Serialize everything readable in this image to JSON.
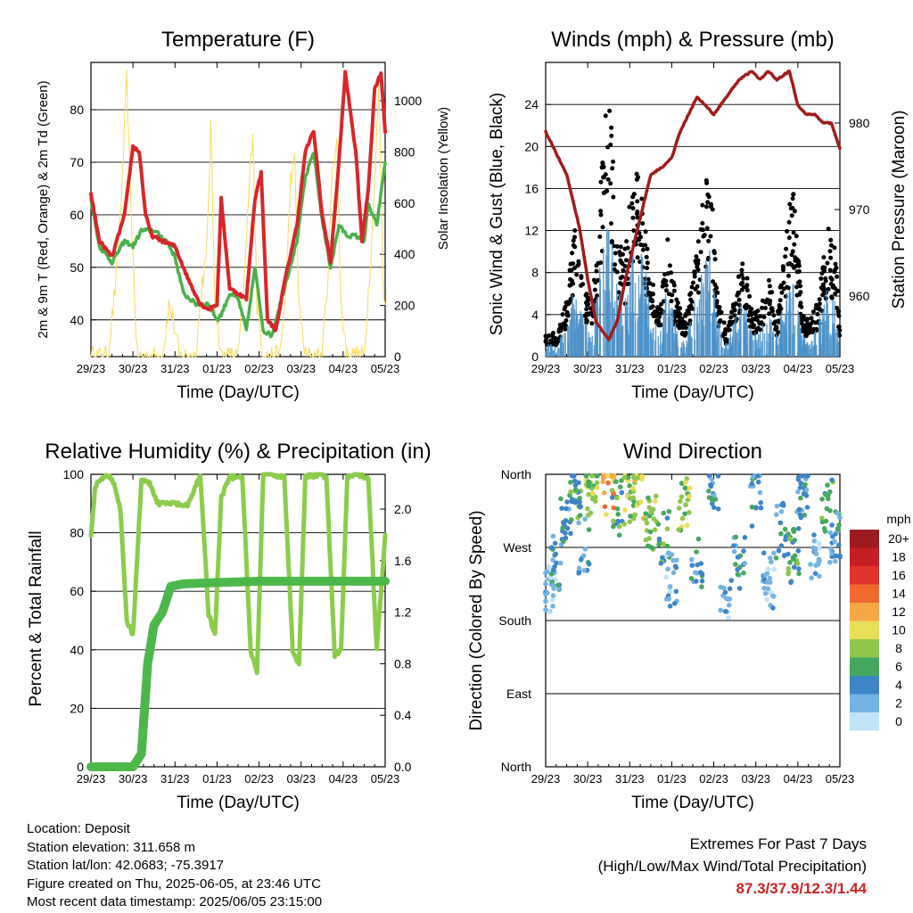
{
  "x_ticks": [
    "29/23",
    "30/23",
    "31/23",
    "01/23",
    "02/23",
    "03/23",
    "04/23",
    "05/23"
  ],
  "x_label": "Time (Day/UTC)",
  "colors": {
    "temp": "#d7262b",
    "dew": "#4cb04a",
    "solar": "#f7df6a",
    "gust": "#000000",
    "wind": "#4a90c8",
    "pressure": "#a01c1c",
    "rh": "#8ccc4c",
    "rain": "#4cb84c"
  },
  "chart_data": [
    {
      "type": "line",
      "title": "Temperature (F)",
      "ylabel": "2m & 9m T (Red, Orange) & 2m Td (Green)",
      "y2label": "Solar Insolation (Yellow)",
      "ylim": [
        33,
        89
      ],
      "y2lim": [
        0,
        1150
      ],
      "yticks": [
        40,
        50,
        60,
        70,
        80
      ],
      "y2ticks": [
        0,
        200,
        400,
        600,
        800,
        1000
      ],
      "series": [
        {
          "key": "temp",
          "x": [
            0,
            0.2,
            0.5,
            0.8,
            1.0,
            1.15,
            1.3,
            1.45,
            1.7,
            2.0,
            2.3,
            2.6,
            2.8,
            3.0,
            3.1,
            3.3,
            3.5,
            3.7,
            3.9,
            4.05,
            4.2,
            4.4,
            4.6,
            4.9,
            5.1,
            5.3,
            5.5,
            5.7,
            5.9,
            6.05,
            6.3,
            6.45,
            6.6,
            6.75,
            6.9,
            7.0
          ],
          "y": [
            64,
            55,
            52,
            60,
            73,
            72,
            60,
            56,
            55,
            54,
            48,
            43,
            42,
            43,
            63,
            46,
            45,
            44,
            63,
            68,
            40,
            38,
            47,
            58,
            72,
            76,
            60,
            51,
            70,
            87,
            72,
            55,
            65,
            84,
            87,
            76
          ]
        },
        {
          "key": "dew",
          "x": [
            0,
            0.2,
            0.5,
            0.8,
            1.0,
            1.2,
            1.5,
            1.8,
            2.0,
            2.2,
            2.5,
            2.8,
            3.0,
            3.1,
            3.3,
            3.5,
            3.7,
            3.9,
            4.1,
            4.3,
            4.6,
            4.9,
            5.1,
            5.3,
            5.5,
            5.7,
            5.9,
            6.1,
            6.3,
            6.5,
            6.6,
            6.8,
            7.0
          ],
          "y": [
            63,
            54,
            51,
            55,
            54,
            57,
            57,
            55,
            52,
            45,
            43,
            43,
            40,
            41,
            45,
            44,
            38,
            50,
            38,
            37,
            46,
            55,
            67,
            72,
            59,
            50,
            58,
            56,
            56,
            55,
            62,
            58,
            70
          ]
        },
        {
          "key": "solar",
          "x": [
            0,
            0.4,
            0.6,
            0.75,
            0.85,
            0.95,
            1.1,
            1.3,
            1.5,
            1.7,
            1.85,
            1.95,
            2.1,
            2.3,
            2.5,
            2.65,
            2.75,
            2.85,
            2.95,
            3.1,
            3.3,
            3.5,
            3.65,
            3.75,
            3.85,
            3.95,
            4.1,
            4.3,
            4.5,
            4.65,
            4.75,
            4.85,
            4.95,
            5.1,
            5.3,
            5.5,
            5.65,
            5.75,
            5.85,
            5.95,
            6.1,
            6.3,
            6.5,
            6.65,
            6.75,
            6.85,
            6.95,
            7.0
          ],
          "y": [
            0,
            0,
            300,
            700,
            1080,
            600,
            0,
            0,
            0,
            0,
            200,
            150,
            0,
            0,
            0,
            300,
            380,
            900,
            220,
            0,
            0,
            0,
            300,
            620,
            900,
            200,
            0,
            0,
            0,
            300,
            700,
            760,
            200,
            0,
            0,
            0,
            350,
            750,
            850,
            200,
            0,
            0,
            0,
            380,
            700,
            1050,
            300,
            200
          ]
        }
      ]
    },
    {
      "type": "scatter",
      "title": "Winds (mph) & Pressure (mb)",
      "ylabel": "Sonic Wind & Gust (Blue, Black)",
      "y2label": "Station Pressure (Maroon)",
      "ylim": [
        0,
        28
      ],
      "y2lim": [
        953,
        987
      ],
      "yticks": [
        0,
        4,
        8,
        12,
        16,
        20,
        24
      ],
      "y2ticks": [
        960,
        970,
        980
      ],
      "series": [
        {
          "key": "wind",
          "x": [
            0,
            0.3,
            0.5,
            0.7,
            0.9,
            1.1,
            1.3,
            1.5,
            1.7,
            1.9,
            2.1,
            2.3,
            2.5,
            2.7,
            2.9,
            3.1,
            3.3,
            3.5,
            3.7,
            3.9,
            4.1,
            4.3,
            4.5,
            4.7,
            4.9,
            5.1,
            5.3,
            5.5,
            5.7,
            5.9,
            6.1,
            6.3,
            6.5,
            6.7,
            6.9,
            7.0
          ],
          "y": [
            1,
            1,
            3,
            6,
            3,
            2,
            8,
            12,
            6,
            5,
            10,
            9,
            4,
            2,
            6,
            3,
            1,
            4,
            7,
            9,
            3,
            1,
            3,
            5,
            2,
            2,
            4,
            2,
            5,
            6,
            2,
            1,
            3,
            6,
            5,
            1
          ]
        },
        {
          "key": "gust",
          "x": [
            0,
            0.3,
            0.5,
            0.7,
            0.9,
            1.1,
            1.3,
            1.5,
            1.7,
            1.9,
            2.1,
            2.3,
            2.5,
            2.7,
            2.9,
            3.1,
            3.3,
            3.5,
            3.7,
            3.9,
            4.1,
            4.3,
            4.5,
            4.7,
            4.9,
            5.1,
            5.3,
            5.5,
            5.7,
            5.9,
            6.1,
            6.3,
            6.5,
            6.7,
            6.9,
            7.0
          ],
          "y": [
            2,
            2,
            5,
            11,
            6,
            4,
            14,
            25,
            10,
            9,
            17,
            13,
            7,
            4,
            10,
            5,
            3,
            7,
            12,
            17,
            5,
            2,
            5,
            9,
            4,
            4,
            7,
            3,
            10,
            15,
            4,
            3,
            5,
            11,
            9,
            2
          ]
        },
        {
          "key": "pressure",
          "x": [
            0,
            0.2,
            0.5,
            0.8,
            1.0,
            1.2,
            1.5,
            1.7,
            1.9,
            2.1,
            2.3,
            2.5,
            2.8,
            3.0,
            3.2,
            3.4,
            3.6,
            3.8,
            4.0,
            4.3,
            4.6,
            4.9,
            5.1,
            5.3,
            5.5,
            5.8,
            6.0,
            6.2,
            6.4,
            6.6,
            6.8,
            7.0
          ],
          "y": [
            979,
            977,
            974,
            968,
            962,
            957,
            955,
            957,
            962,
            966,
            970,
            974,
            975,
            976,
            979,
            981,
            983,
            982,
            981,
            983,
            985,
            986,
            985,
            986,
            985,
            986,
            982,
            981,
            981,
            980,
            980,
            977
          ]
        }
      ]
    },
    {
      "type": "line",
      "title": "Relative Humidity (%) & Precipitation (in)",
      "ylabel": "Percent & Total Rainfall",
      "ylim": [
        0,
        100
      ],
      "y2lim": [
        0,
        2.27
      ],
      "yticks": [
        0,
        20,
        40,
        60,
        80,
        100
      ],
      "y2ticks": [
        0.0,
        0.4,
        0.8,
        1.2,
        1.6,
        2.0
      ],
      "series": [
        {
          "key": "rh",
          "x": [
            0,
            0.1,
            0.3,
            0.5,
            0.7,
            0.85,
            1.0,
            1.2,
            1.4,
            1.6,
            1.8,
            2.0,
            2.3,
            2.6,
            2.8,
            2.95,
            3.1,
            3.3,
            3.6,
            3.8,
            3.95,
            4.1,
            4.3,
            4.6,
            4.8,
            4.95,
            5.1,
            5.4,
            5.6,
            5.8,
            5.95,
            6.1,
            6.3,
            6.6,
            6.8,
            7.0
          ],
          "y": [
            79,
            96,
            99,
            99,
            88,
            50,
            45,
            98,
            97,
            90,
            90,
            90,
            89,
            100,
            52,
            45,
            92,
            99,
            99,
            40,
            32,
            100,
            100,
            99,
            40,
            35,
            99,
            100,
            99,
            38,
            40,
            99,
            100,
            99,
            40,
            79
          ]
        },
        {
          "key": "rain",
          "x": [
            0,
            0.5,
            1.0,
            1.2,
            1.35,
            1.5,
            1.7,
            1.9,
            2.2,
            3.0,
            4.0,
            5.0,
            6.0,
            7.0
          ],
          "y": [
            0,
            0,
            0,
            0.1,
            0.8,
            1.1,
            1.2,
            1.4,
            1.42,
            1.43,
            1.44,
            1.44,
            1.44,
            1.44
          ]
        }
      ]
    },
    {
      "type": "scatter",
      "title": "Wind Direction",
      "ylabel": "Direction (Colored By Speed)",
      "ycategories": [
        "North",
        "East",
        "South",
        "West",
        "North"
      ],
      "colorbar": {
        "title": "mph",
        "labels": [
          "20+",
          "18",
          "16",
          "14",
          "12",
          "10",
          "8",
          "6",
          "4",
          "2",
          "0"
        ],
        "colors": [
          "#9b1b1e",
          "#c41f24",
          "#e03329",
          "#f06a30",
          "#f7a746",
          "#e9de58",
          "#8ec64e",
          "#46a860",
          "#3d85c6",
          "#74b3e4",
          "#bfe3f7"
        ]
      },
      "clusters": [
        {
          "x": 0.1,
          "dir_deg": 220,
          "speed": 2
        },
        {
          "x": 0.25,
          "dir_deg": 250,
          "speed": 4
        },
        {
          "x": 0.5,
          "dir_deg": 300,
          "speed": 4
        },
        {
          "x": 0.7,
          "dir_deg": 330,
          "speed": 6
        },
        {
          "x": 0.9,
          "dir_deg": 270,
          "speed": 4
        },
        {
          "x": 1.1,
          "dir_deg": 340,
          "speed": 8
        },
        {
          "x": 1.5,
          "dir_deg": 345,
          "speed": 12
        },
        {
          "x": 1.7,
          "dir_deg": 320,
          "speed": 6
        },
        {
          "x": 2.0,
          "dir_deg": 330,
          "speed": 8
        },
        {
          "x": 2.2,
          "dir_deg": 335,
          "speed": 10
        },
        {
          "x": 2.5,
          "dir_deg": 300,
          "speed": 8
        },
        {
          "x": 2.8,
          "dir_deg": 280,
          "speed": 6
        },
        {
          "x": 3.0,
          "dir_deg": 230,
          "speed": 2
        },
        {
          "x": 3.3,
          "dir_deg": 320,
          "speed": 8
        },
        {
          "x": 3.6,
          "dir_deg": 250,
          "speed": 4
        },
        {
          "x": 4.0,
          "dir_deg": 340,
          "speed": 4
        },
        {
          "x": 4.3,
          "dir_deg": 200,
          "speed": 2
        },
        {
          "x": 4.6,
          "dir_deg": 250,
          "speed": 4
        },
        {
          "x": 5.0,
          "dir_deg": 330,
          "speed": 4
        },
        {
          "x": 5.3,
          "dir_deg": 230,
          "speed": 2
        },
        {
          "x": 5.6,
          "dir_deg": 290,
          "speed": 4
        },
        {
          "x": 5.9,
          "dir_deg": 260,
          "speed": 6
        },
        {
          "x": 6.1,
          "dir_deg": 340,
          "speed": 4
        },
        {
          "x": 6.4,
          "dir_deg": 260,
          "speed": 2
        },
        {
          "x": 6.7,
          "dir_deg": 320,
          "speed": 6
        },
        {
          "x": 6.9,
          "dir_deg": 280,
          "speed": 4
        }
      ]
    }
  ],
  "info": {
    "location": "Location: Deposit",
    "elevation": "Station elevation: 311.658 m",
    "latlon": "Station lat/lon: 42.0683; -75.3917",
    "created": "Figure created on Thu, 2025-06-05, at 23:46 UTC",
    "recent": "Most recent data timestamp: 2025/06/05 23:15:00"
  },
  "extremes": {
    "title": "Extremes For Past 7 Days",
    "subtitle": "(High/Low/Max Wind/Total Precipitation)",
    "values": "87.3/37.9/12.3/1.44"
  }
}
